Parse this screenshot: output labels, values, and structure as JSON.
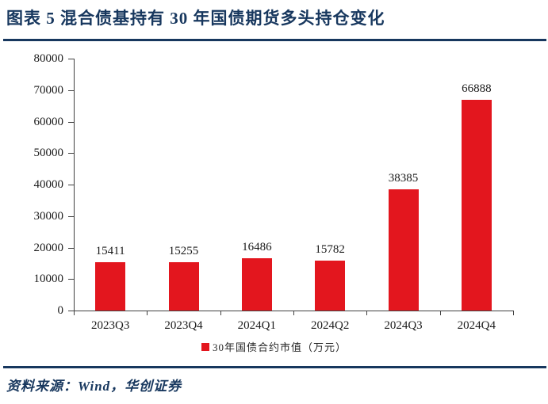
{
  "colors": {
    "accent_navy": "#17375E",
    "bar_red": "#E3161E",
    "axis_gray": "#404040",
    "text_black": "#1a1a1a"
  },
  "header": {
    "title": "图表 5  混合债基持有 30 年国债期货多头持仓变化"
  },
  "legend": {
    "marker": "red-square",
    "label": "30年国债合约市值（万元）"
  },
  "footer": {
    "source": "资料来源：Wind，华创证券"
  },
  "chart_data": {
    "type": "bar",
    "title": "",
    "categories": [
      "2023Q3",
      "2023Q4",
      "2024Q1",
      "2024Q2",
      "2024Q3",
      "2024Q4"
    ],
    "values": [
      15411,
      15255,
      16486,
      15782,
      38385,
      66888
    ],
    "series_name": "30年国债合约市值（万元）",
    "data_labels": [
      15411,
      15255,
      16486,
      15782,
      38385,
      66888
    ],
    "xlabel": "",
    "ylabel": "",
    "ylim": [
      0,
      80000
    ],
    "ytick_step": 10000,
    "ytick_labels": [
      "0",
      "10000",
      "20000",
      "30000",
      "40000",
      "50000",
      "60000",
      "70000",
      "80000"
    ],
    "grid": false,
    "bar_color": "#E3161E",
    "legend_position": "bottom"
  }
}
